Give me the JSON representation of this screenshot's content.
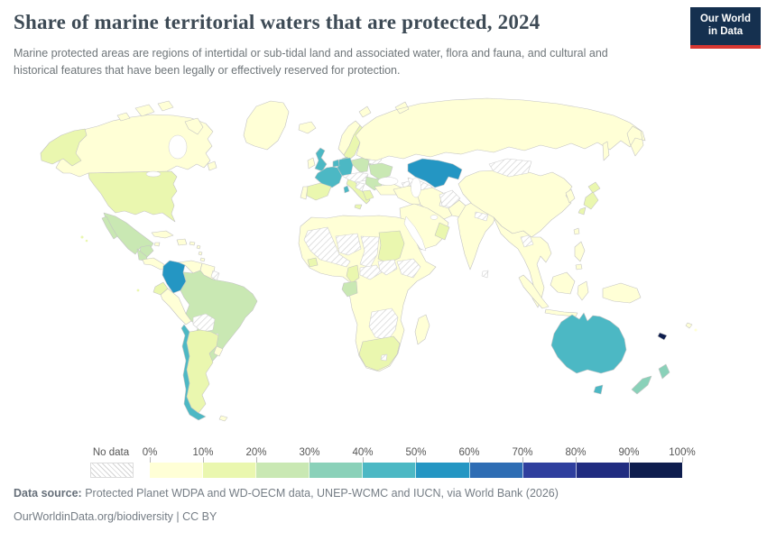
{
  "header": {
    "title": "Share of marine territorial waters that are protected, 2024",
    "subtitle": "Marine protected areas are regions of intertidal or sub-tidal land and associated water, flora and fauna, and cultural and historical features that have been legally or effectively reserved for protection.",
    "logo": {
      "line1": "Our World",
      "line2": "in Data"
    }
  },
  "legend": {
    "no_data_label": "No data",
    "tick_labels": [
      "0%",
      "10%",
      "20%",
      "30%",
      "40%",
      "50%",
      "60%",
      "70%",
      "80%",
      "90%",
      "100%"
    ]
  },
  "footer": {
    "source_label": "Data source:",
    "source_text": " Protected Planet WDPA and WD-OECM data, UNEP-WCMC and IUCN, via World Bank (2026)",
    "link_line": "OurWorldinData.org/biodiversity | CC BY"
  },
  "colors": {
    "owid_navy": "#15304f",
    "owid_red": "#d73732",
    "land_stroke": "#c4c4c4",
    "hatch_line": "#d4d4d4"
  },
  "chart_data": {
    "type": "choropleth_map",
    "title": "Share of marine territorial waters that are protected, 2024",
    "unit": "%",
    "year": 2024,
    "legend_position": "bottom",
    "bins": [
      {
        "range": "0-10%",
        "color": "#ffffd6"
      },
      {
        "range": "10-20%",
        "color": "#eaf7af"
      },
      {
        "range": "20-30%",
        "color": "#c9e8b3"
      },
      {
        "range": "30-40%",
        "color": "#8ad1b9"
      },
      {
        "range": "40-50%",
        "color": "#4cb8c4"
      },
      {
        "range": "50-60%",
        "color": "#2496c3"
      },
      {
        "range": "60-70%",
        "color": "#2e6db4"
      },
      {
        "range": "70-80%",
        "color": "#2f3f9e"
      },
      {
        "range": "80-90%",
        "color": "#202c80"
      },
      {
        "range": "90-100%",
        "color": "#0e1d4e"
      }
    ],
    "no_data_style": "diagonal-hatch",
    "countries": [
      {
        "id": "canada",
        "name": "Canada",
        "range": "0-10%"
      },
      {
        "id": "greenland",
        "name": "Greenland",
        "range": "0-10%"
      },
      {
        "id": "united-states",
        "name": "United States",
        "range": "10-20%"
      },
      {
        "id": "mexico",
        "name": "Mexico",
        "range": "20-30%"
      },
      {
        "id": "guatemala",
        "name": "Guatemala",
        "range": "20-30%"
      },
      {
        "id": "central-america",
        "name": "Central America (other)",
        "range": "0-10%"
      },
      {
        "id": "panama",
        "name": "Panama",
        "range": "20-30%"
      },
      {
        "id": "cuba",
        "name": "Cuba",
        "range": "0-10%"
      },
      {
        "id": "hispaniola",
        "name": "Hispaniola",
        "range": "0-10%"
      },
      {
        "id": "jamaica",
        "name": "Jamaica",
        "range": "0-10%"
      },
      {
        "id": "puerto-rico",
        "name": "Puerto Rico",
        "range": "0-10%"
      },
      {
        "id": "caribbean-islands",
        "name": "Caribbean islands",
        "range": "0-10%"
      },
      {
        "id": "colombia",
        "name": "Colombia",
        "range": "50-60%"
      },
      {
        "id": "venezuela",
        "name": "Venezuela",
        "range": "0-10%"
      },
      {
        "id": "guyana-suriname",
        "name": "Guyana and Suriname",
        "range": "0-10%"
      },
      {
        "id": "french-guiana",
        "name": "French Guiana",
        "range": "No data"
      },
      {
        "id": "ecuador",
        "name": "Ecuador",
        "range": "10-20%"
      },
      {
        "id": "peru",
        "name": "Peru",
        "range": "0-10%"
      },
      {
        "id": "brazil",
        "name": "Brazil",
        "range": "20-30%"
      },
      {
        "id": "bolivia",
        "name": "Bolivia",
        "range": "No data"
      },
      {
        "id": "paraguay",
        "name": "Paraguay",
        "range": "No data"
      },
      {
        "id": "chile",
        "name": "Chile",
        "range": "40-50%"
      },
      {
        "id": "argentina",
        "name": "Argentina",
        "range": "10-20%"
      },
      {
        "id": "uruguay",
        "name": "Uruguay",
        "range": "0-10%"
      },
      {
        "id": "falkland-islands",
        "name": "Falkland Islands",
        "range": "0-10%"
      },
      {
        "id": "iceland",
        "name": "Iceland",
        "range": "0-10%"
      },
      {
        "id": "ireland",
        "name": "Ireland",
        "range": "0-10%"
      },
      {
        "id": "united-kingdom",
        "name": "United Kingdom",
        "range": "40-50%"
      },
      {
        "id": "norway",
        "name": "Norway",
        "range": "0-10%"
      },
      {
        "id": "sweden",
        "name": "Sweden",
        "range": "10-20%"
      },
      {
        "id": "finland",
        "name": "Finland",
        "range": "10-20%"
      },
      {
        "id": "denmark",
        "name": "Denmark",
        "range": "30-40%"
      },
      {
        "id": "baltic-states",
        "name": "Baltic states",
        "range": "20-30%"
      },
      {
        "id": "belarus",
        "name": "Belarus",
        "range": "No data"
      },
      {
        "id": "poland",
        "name": "Poland",
        "range": "20-30%"
      },
      {
        "id": "germany",
        "name": "Germany",
        "range": "40-50%"
      },
      {
        "id": "netherlands-belgium",
        "name": "Netherlands and Belgium",
        "range": "40-50%"
      },
      {
        "id": "france",
        "name": "France",
        "range": "40-50%"
      },
      {
        "id": "spain",
        "name": "Spain",
        "range": "10-20%"
      },
      {
        "id": "portugal",
        "name": "Portugal",
        "range": "0-10%"
      },
      {
        "id": "italy",
        "name": "Italy",
        "range": "10-20%"
      },
      {
        "id": "central-europe",
        "name": "Central Europe (landlocked)",
        "range": "No data"
      },
      {
        "id": "balkans",
        "name": "Western Balkans",
        "range": "No data"
      },
      {
        "id": "ukraine",
        "name": "Ukraine",
        "range": "20-30%"
      },
      {
        "id": "romania-bulgaria",
        "name": "Romania and Bulgaria",
        "range": "20-30%"
      },
      {
        "id": "greece",
        "name": "Greece",
        "range": "10-20%"
      },
      {
        "id": "turkey",
        "name": "Turkey",
        "range": "0-10%"
      },
      {
        "id": "caucasus",
        "name": "Caucasus",
        "range": "No data"
      },
      {
        "id": "russia",
        "name": "Russia",
        "range": "0-10%"
      },
      {
        "id": "kazakhstan",
        "name": "Kazakhstan",
        "range": "50-60%"
      },
      {
        "id": "central-asia",
        "name": "Central Asia",
        "range": "No data"
      },
      {
        "id": "afghanistan",
        "name": "Afghanistan",
        "range": "No data"
      },
      {
        "id": "iran",
        "name": "Iran",
        "range": "0-10%"
      },
      {
        "id": "levant-iraq",
        "name": "Levant and Iraq",
        "range": "0-10%"
      },
      {
        "id": "arabian-peninsula",
        "name": "Arabian Peninsula",
        "range": "0-10%"
      },
      {
        "id": "oman",
        "name": "Oman",
        "range": "10-20%"
      },
      {
        "id": "pakistan",
        "name": "Pakistan",
        "range": "0-10%"
      },
      {
        "id": "africa-other",
        "name": "Other African coastal countries",
        "range": "0-10%"
      },
      {
        "id": "west-africa-interior",
        "name": "Western Sahara, Mauritania and Mali",
        "range": "No data"
      },
      {
        "id": "niger",
        "name": "Niger",
        "range": "No data"
      },
      {
        "id": "chad",
        "name": "Chad",
        "range": "No data"
      },
      {
        "id": "sudan",
        "name": "Sudan",
        "range": "10-20%"
      },
      {
        "id": "central-african-republic",
        "name": "Central African Republic",
        "range": "No data"
      },
      {
        "id": "south-sudan",
        "name": "South Sudan",
        "range": "No data"
      },
      {
        "id": "ethiopia",
        "name": "Ethiopia",
        "range": "No data"
      },
      {
        "id": "guinea",
        "name": "Guinea",
        "range": "10-20%"
      },
      {
        "id": "cameroon",
        "name": "Cameroon",
        "range": "10-20%"
      },
      {
        "id": "gabon",
        "name": "Gabon",
        "range": "20-30%"
      },
      {
        "id": "zambia-zimbabwe-botswana",
        "name": "Zambia, Zimbabwe and Botswana",
        "range": "No data"
      },
      {
        "id": "lesotho",
        "name": "Lesotho",
        "range": "No data"
      },
      {
        "id": "south-africa",
        "name": "South Africa",
        "range": "10-20%"
      },
      {
        "id": "madagascar",
        "name": "Madagascar",
        "range": "0-10%"
      },
      {
        "id": "india",
        "name": "India",
        "range": "0-10%"
      },
      {
        "id": "nepal",
        "name": "Nepal",
        "range": "No data"
      },
      {
        "id": "sri-lanka",
        "name": "Sri Lanka",
        "range": "No data"
      },
      {
        "id": "china",
        "name": "China",
        "range": "0-10%"
      },
      {
        "id": "mongolia",
        "name": "Mongolia",
        "range": "No data"
      },
      {
        "id": "south-korea",
        "name": "South Korea",
        "range": "0-10%"
      },
      {
        "id": "japan",
        "name": "Japan",
        "range": "10-20%"
      },
      {
        "id": "taiwan",
        "name": "Taiwan",
        "range": "0-10%"
      },
      {
        "id": "southeast-asia",
        "name": "Southeast Asia mainland",
        "range": "0-10%"
      },
      {
        "id": "laos",
        "name": "Laos",
        "range": "No data"
      },
      {
        "id": "philippines",
        "name": "Philippines",
        "range": "0-10%"
      },
      {
        "id": "indonesia",
        "name": "Indonesia",
        "range": "0-10%"
      },
      {
        "id": "new-guinea",
        "name": "New Guinea",
        "range": "0-10%"
      },
      {
        "id": "australia",
        "name": "Australia",
        "range": "40-50%"
      },
      {
        "id": "new-zealand",
        "name": "New Zealand",
        "range": "30-40%"
      },
      {
        "id": "new-caledonia",
        "name": "New Caledonia",
        "range": "90-100%"
      },
      {
        "id": "pacific-islands",
        "name": "Pacific islands",
        "range": "0-10%"
      }
    ]
  }
}
